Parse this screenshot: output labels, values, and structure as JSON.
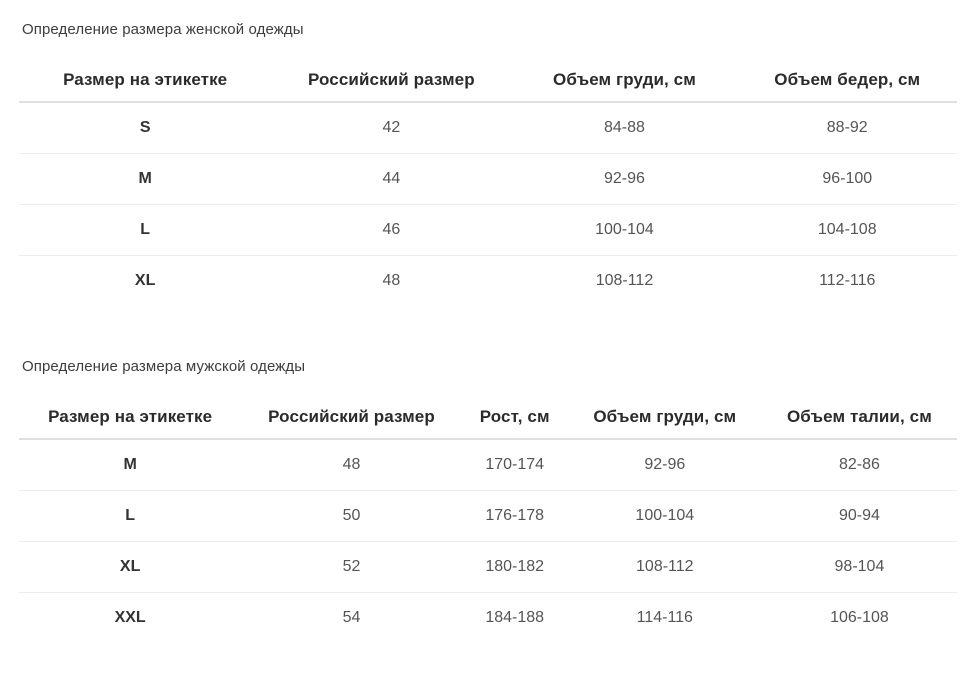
{
  "colors": {
    "title_text": "#3d3d3d",
    "header_text": "#2b2b2b",
    "label_text": "#333333",
    "cell_text": "#555555",
    "header_border": "#e0e0e0",
    "row_border": "#ededed",
    "background": "#ffffff"
  },
  "tables": [
    {
      "title": "Определение размера женской одежды",
      "columns": [
        "Размер на этикетке",
        "Российский размер",
        "Объем груди, см",
        "Объем бедер, см"
      ],
      "col_widths": [
        "26.9%",
        "25.6%",
        "24.1%",
        "23.4%"
      ],
      "rows": [
        [
          "S",
          "42",
          "84-88",
          "88-92"
        ],
        [
          "M",
          "44",
          "92-96",
          "96-100"
        ],
        [
          "L",
          "46",
          "100-104",
          "104-108"
        ],
        [
          "XL",
          "48",
          "108-112",
          "112-116"
        ]
      ]
    },
    {
      "title": "Определение размера мужской одежды",
      "columns": [
        "Размер на этикетке",
        "Российский размер",
        "Рост, см",
        "Объем груди, см",
        "Объем талии, см"
      ],
      "col_widths": [
        "23.7%",
        "23.5%",
        "11.3%",
        "20.7%",
        "20.8%"
      ],
      "rows": [
        [
          "M",
          "48",
          "170-174",
          "92-96",
          "82-86"
        ],
        [
          "L",
          "50",
          "176-178",
          "100-104",
          "90-94"
        ],
        [
          "XL",
          "52",
          "180-182",
          "108-112",
          "98-104"
        ],
        [
          "XXL",
          "54",
          "184-188",
          "114-116",
          "106-108"
        ]
      ]
    }
  ]
}
